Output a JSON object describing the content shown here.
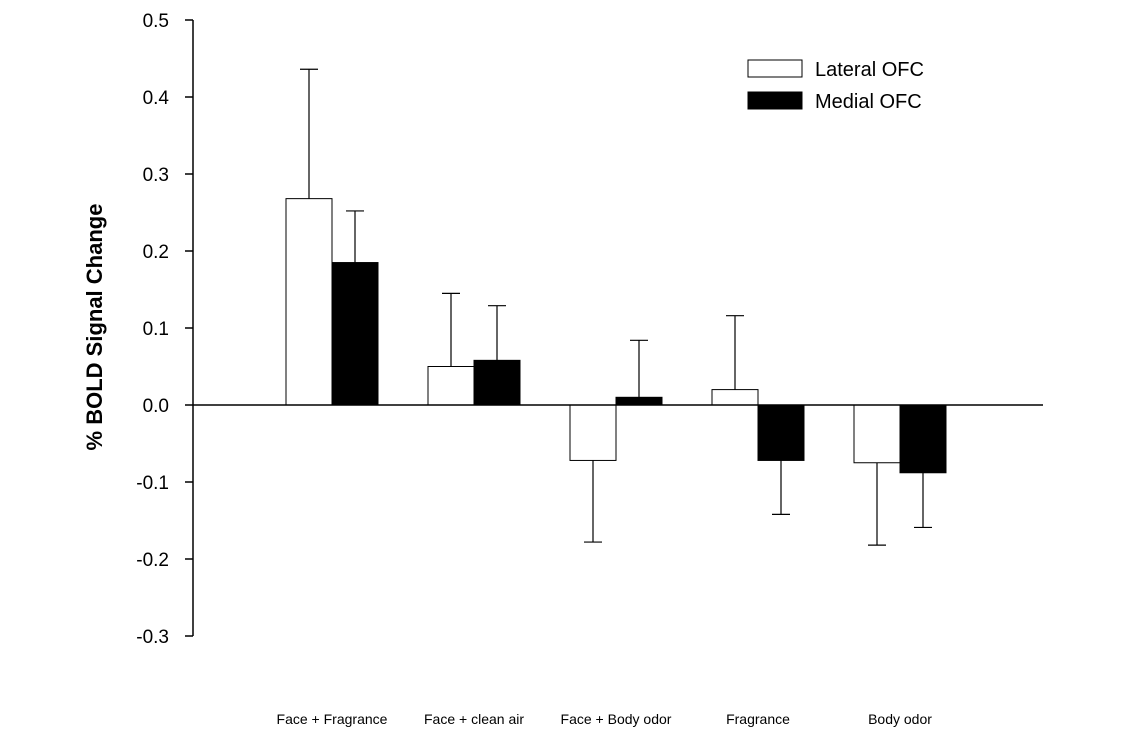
{
  "chart_data": {
    "type": "bar",
    "title": "",
    "xlabel": "",
    "ylabel": "% BOLD Signal Change",
    "categories": [
      "Face + Fragrance",
      "Face + clean air",
      "Face + Body odor",
      "Fragrance",
      "Body odor"
    ],
    "series": [
      {
        "name": "Lateral OFC",
        "fill": "#ffffff",
        "values": [
          0.268,
          0.05,
          -0.072,
          0.02,
          -0.075
        ],
        "error": [
          0.168,
          0.095,
          0.106,
          0.096,
          0.107
        ]
      },
      {
        "name": "Medial OFC",
        "fill": "#000000",
        "values": [
          0.185,
          0.058,
          0.01,
          -0.072,
          -0.088
        ],
        "error": [
          0.067,
          0.071,
          0.074,
          0.07,
          0.071
        ]
      }
    ],
    "ylim": [
      -0.3,
      0.5
    ],
    "yticks": [
      0.5,
      0.4,
      0.3,
      0.2,
      0.1,
      0.0,
      -0.1,
      -0.2,
      -0.3
    ],
    "ytick_labels": [
      "0.5",
      "0.4",
      "0.3",
      "0.2",
      "0.1",
      "0.0",
      "-0.1",
      "-0.2",
      "-0.3"
    ],
    "grid": false,
    "legend_position": "top-right",
    "error_bars": "one-sided"
  }
}
